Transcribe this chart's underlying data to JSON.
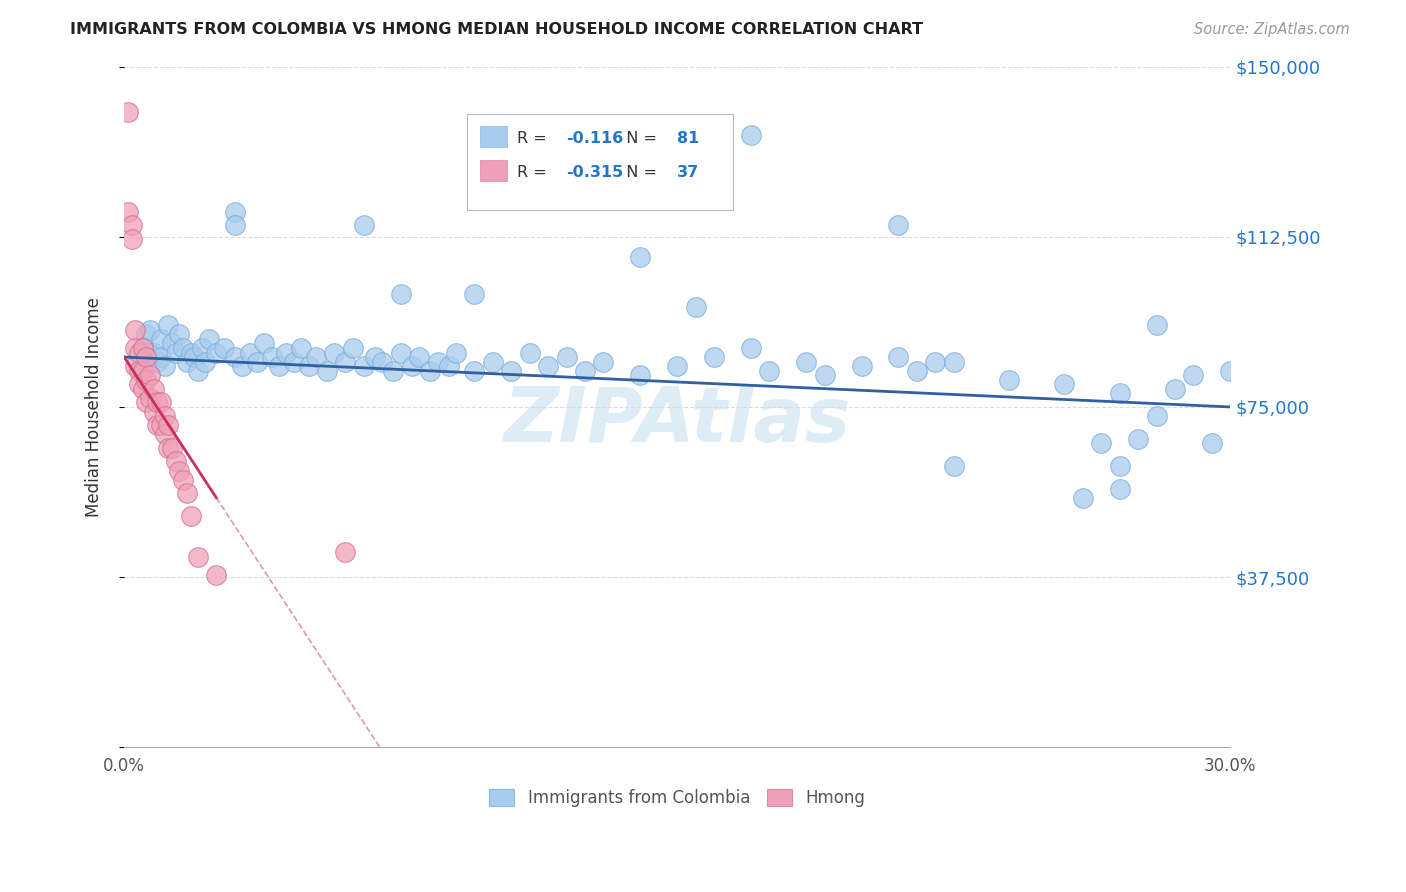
{
  "title": "IMMIGRANTS FROM COLOMBIA VS HMONG MEDIAN HOUSEHOLD INCOME CORRELATION CHART",
  "source": "Source: ZipAtlas.com",
  "ylabel": "Median Household Income",
  "xlim": [
    0.0,
    0.3
  ],
  "ylim": [
    0,
    150000
  ],
  "yticks": [
    0,
    37500,
    75000,
    112500,
    150000
  ],
  "ytick_labels": [
    "",
    "$37,500",
    "$75,000",
    "$112,500",
    "$150,000"
  ],
  "xticks": [
    0.0,
    0.05,
    0.1,
    0.15,
    0.2,
    0.25,
    0.3
  ],
  "legend_label1": "Immigrants from Colombia",
  "legend_label2": "Hmong",
  "R1": -0.116,
  "N1": 81,
  "R2": -0.315,
  "N2": 37,
  "color1": "#A8CCEE",
  "color2": "#F0A0B8",
  "line_color1": "#3060A0",
  "line_color2": "#C83060",
  "watermark": "ZIPAtlas",
  "colombia_x": [
    0.005,
    0.006,
    0.007,
    0.008,
    0.009,
    0.01,
    0.01,
    0.011,
    0.012,
    0.013,
    0.014,
    0.015,
    0.016,
    0.017,
    0.018,
    0.019,
    0.02,
    0.021,
    0.022,
    0.023,
    0.025,
    0.027,
    0.03,
    0.032,
    0.034,
    0.036,
    0.038,
    0.04,
    0.042,
    0.044,
    0.046,
    0.048,
    0.05,
    0.052,
    0.055,
    0.057,
    0.06,
    0.062,
    0.065,
    0.068,
    0.07,
    0.073,
    0.075,
    0.078,
    0.08,
    0.083,
    0.085,
    0.088,
    0.09,
    0.095,
    0.1,
    0.105,
    0.11,
    0.115,
    0.12,
    0.125,
    0.13,
    0.14,
    0.15,
    0.155,
    0.16,
    0.17,
    0.175,
    0.185,
    0.19,
    0.2,
    0.21,
    0.215,
    0.22,
    0.225,
    0.24,
    0.255,
    0.265,
    0.27,
    0.275,
    0.285,
    0.29,
    0.295,
    0.3,
    0.17,
    0.03
  ],
  "colombia_y": [
    88000,
    91000,
    92000,
    87000,
    85000,
    90000,
    86000,
    84000,
    93000,
    89000,
    87000,
    91000,
    88000,
    85000,
    87000,
    86000,
    83000,
    88000,
    85000,
    90000,
    87000,
    88000,
    86000,
    84000,
    87000,
    85000,
    89000,
    86000,
    84000,
    87000,
    85000,
    88000,
    84000,
    86000,
    83000,
    87000,
    85000,
    88000,
    84000,
    86000,
    85000,
    83000,
    87000,
    84000,
    86000,
    83000,
    85000,
    84000,
    87000,
    83000,
    85000,
    83000,
    87000,
    84000,
    86000,
    83000,
    85000,
    82000,
    84000,
    97000,
    86000,
    88000,
    83000,
    85000,
    82000,
    84000,
    86000,
    83000,
    85000,
    85000,
    81000,
    80000,
    67000,
    78000,
    68000,
    79000,
    82000,
    67000,
    83000,
    135000,
    118000
  ],
  "colombia_y_special": [
    130000,
    115000,
    115000,
    100000,
    100000,
    115000,
    108000,
    93000,
    73000,
    62000,
    62000,
    57000,
    55000
  ],
  "colombia_x_special": [
    0.155,
    0.03,
    0.21,
    0.075,
    0.095,
    0.065,
    0.14,
    0.28,
    0.28,
    0.225,
    0.27,
    0.27,
    0.26
  ],
  "hmong_x": [
    0.001,
    0.001,
    0.002,
    0.002,
    0.003,
    0.003,
    0.003,
    0.004,
    0.004,
    0.004,
    0.005,
    0.005,
    0.005,
    0.006,
    0.006,
    0.006,
    0.007,
    0.007,
    0.008,
    0.008,
    0.009,
    0.009,
    0.01,
    0.01,
    0.011,
    0.011,
    0.012,
    0.012,
    0.013,
    0.014,
    0.015,
    0.016,
    0.017,
    0.018,
    0.02,
    0.025,
    0.06
  ],
  "hmong_y": [
    140000,
    118000,
    115000,
    112000,
    92000,
    88000,
    84000,
    87000,
    83000,
    80000,
    88000,
    83000,
    79000,
    86000,
    81000,
    76000,
    82000,
    77000,
    79000,
    74000,
    76000,
    71000,
    76000,
    71000,
    73000,
    69000,
    71000,
    66000,
    66000,
    63000,
    61000,
    59000,
    56000,
    51000,
    42000,
    38000,
    43000
  ],
  "blue_line_y0": 86000,
  "blue_line_y1": 75000,
  "pink_line_x0": 0.0,
  "pink_line_y0": 86000,
  "pink_line_x1": 0.025,
  "pink_line_y1": 55000
}
